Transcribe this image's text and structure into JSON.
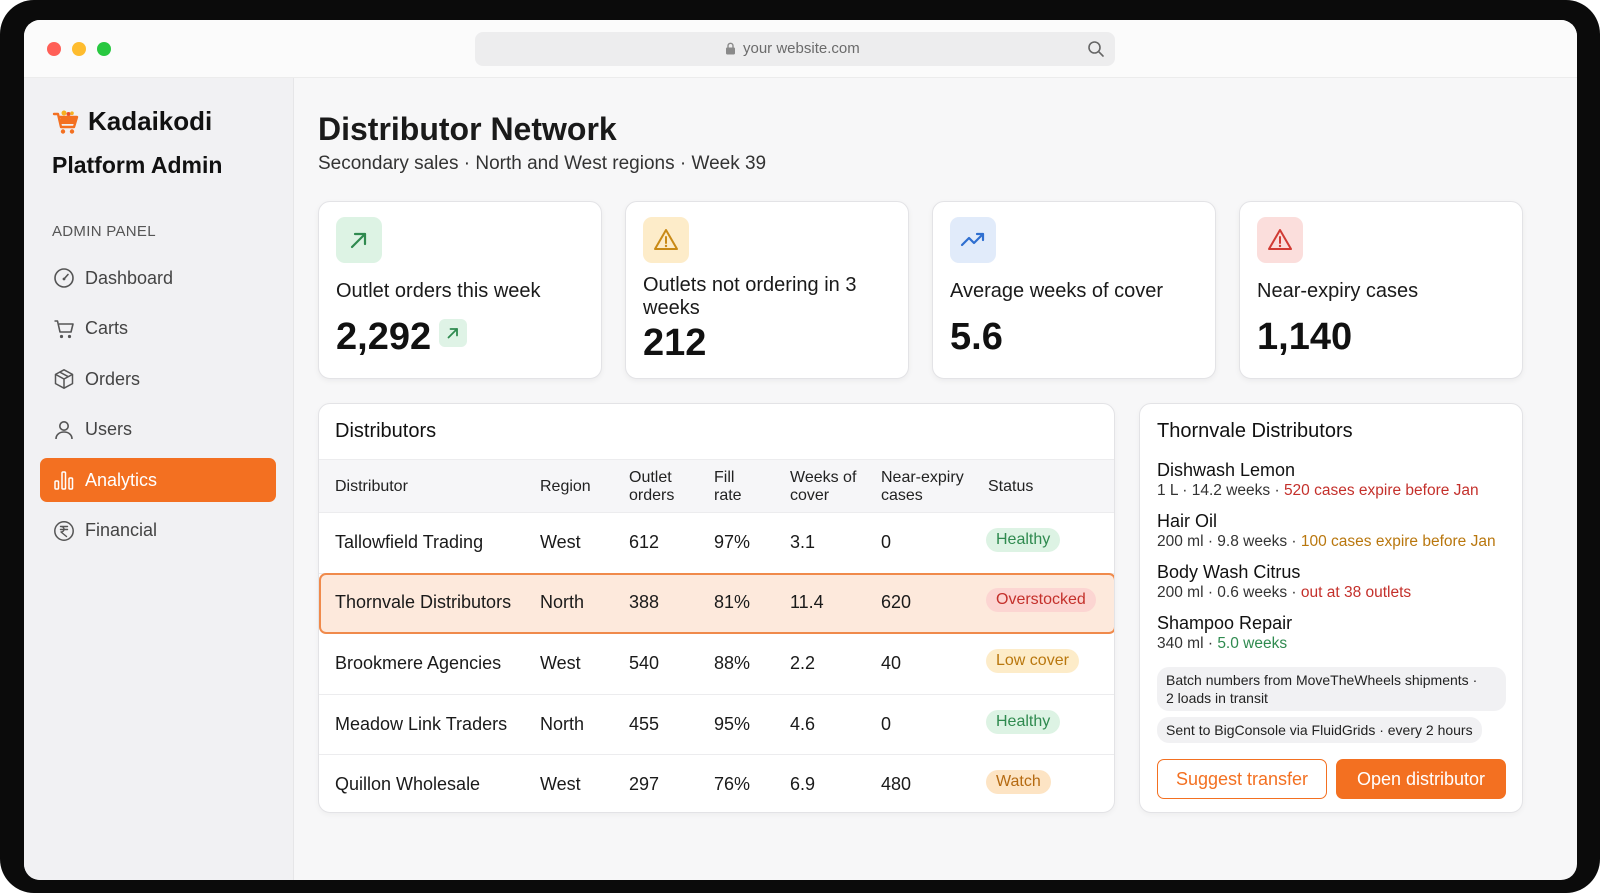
{
  "browser": {
    "url": "your website.com"
  },
  "sidebar": {
    "brand": "Kadaikodi",
    "subtitle": "Platform Admin",
    "section_label": "ADMIN PANEL",
    "items": [
      {
        "label": "Dashboard",
        "icon": "gauge-icon"
      },
      {
        "label": "Carts",
        "icon": "cart-icon"
      },
      {
        "label": "Orders",
        "icon": "box-icon"
      },
      {
        "label": "Users",
        "icon": "user-icon"
      },
      {
        "label": "Analytics",
        "icon": "bar-chart-icon",
        "active": true
      },
      {
        "label": "Financial",
        "icon": "rupee-icon"
      }
    ]
  },
  "page": {
    "title": "Distributor Network",
    "subtitle": "Secondary sales · North and West regions · Week 39"
  },
  "kpis": [
    {
      "label": "Outlet orders this week",
      "value": "2,292",
      "icon": "arrow-up-right-icon",
      "color": "#2f8a4f"
    },
    {
      "label": "Outlets not ordering in 3 weeks",
      "value": "212",
      "icon": "warning-icon",
      "color": "#c98a16"
    },
    {
      "label": "Average weeks of cover",
      "value": "5.6",
      "icon": "trending-up-icon",
      "color": "#2f6fd0"
    },
    {
      "label": "Near-expiry cases",
      "value": "1,140",
      "icon": "alert-triangle-icon",
      "color": "#d13b34"
    }
  ],
  "distributors": {
    "title": "Distributors",
    "columns": [
      "Distributor",
      "Region",
      "Outlet orders",
      "Fill rate",
      "Weeks of cover",
      "Near-expiry cases",
      "Status"
    ],
    "rows": [
      {
        "name": "Tallowfield Trading",
        "region": "West",
        "orders": "612",
        "fill": "97%",
        "cover": "3.1",
        "expiry": "0",
        "status": "Healthy"
      },
      {
        "name": "Thornvale Distributors",
        "region": "North",
        "orders": "388",
        "fill": "81%",
        "cover": "11.4",
        "expiry": "620",
        "status": "Overstocked",
        "selected": true
      },
      {
        "name": "Brookmere Agencies",
        "region": "West",
        "orders": "540",
        "fill": "88%",
        "cover": "2.2",
        "expiry": "40",
        "status": "Low cover"
      },
      {
        "name": "Meadow Link Traders",
        "region": "North",
        "orders": "455",
        "fill": "95%",
        "cover": "4.6",
        "expiry": "0",
        "status": "Healthy"
      },
      {
        "name": "Quillon Wholesale",
        "region": "West",
        "orders": "297",
        "fill": "76%",
        "cover": "6.9",
        "expiry": "480",
        "status": "Watch"
      }
    ]
  },
  "detail": {
    "title": "Thornvale Distributors",
    "products": [
      {
        "name": "Dishwash Lemon",
        "meta": "1 L · 14.2 weeks · ",
        "flag": "520 cases expire before Jan"
      },
      {
        "name": "Hair Oil",
        "meta": "200 ml · 9.8 weeks · ",
        "flag": "100 cases expire before Jan"
      },
      {
        "name": "Body Wash Citrus",
        "meta": "200 ml · 0.6 weeks · ",
        "flag": "out at 38 outlets"
      },
      {
        "name": "Shampoo Repair",
        "meta": "340 ml · ",
        "flag": "5.0 weeks"
      }
    ],
    "note1_line1": "Batch numbers from MoveTheWheels shipments ·",
    "note1_line2": "2 loads in transit",
    "note2": "Sent to BigConsole via FluidGrids · every 2 hours",
    "btn_suggest": "Suggest transfer",
    "btn_open": "Open distributor"
  },
  "colors": {
    "accent": "#f37021",
    "healthy": "#2f8a4f",
    "overstocked": "#c4302b",
    "low_cover": "#b9770e"
  }
}
